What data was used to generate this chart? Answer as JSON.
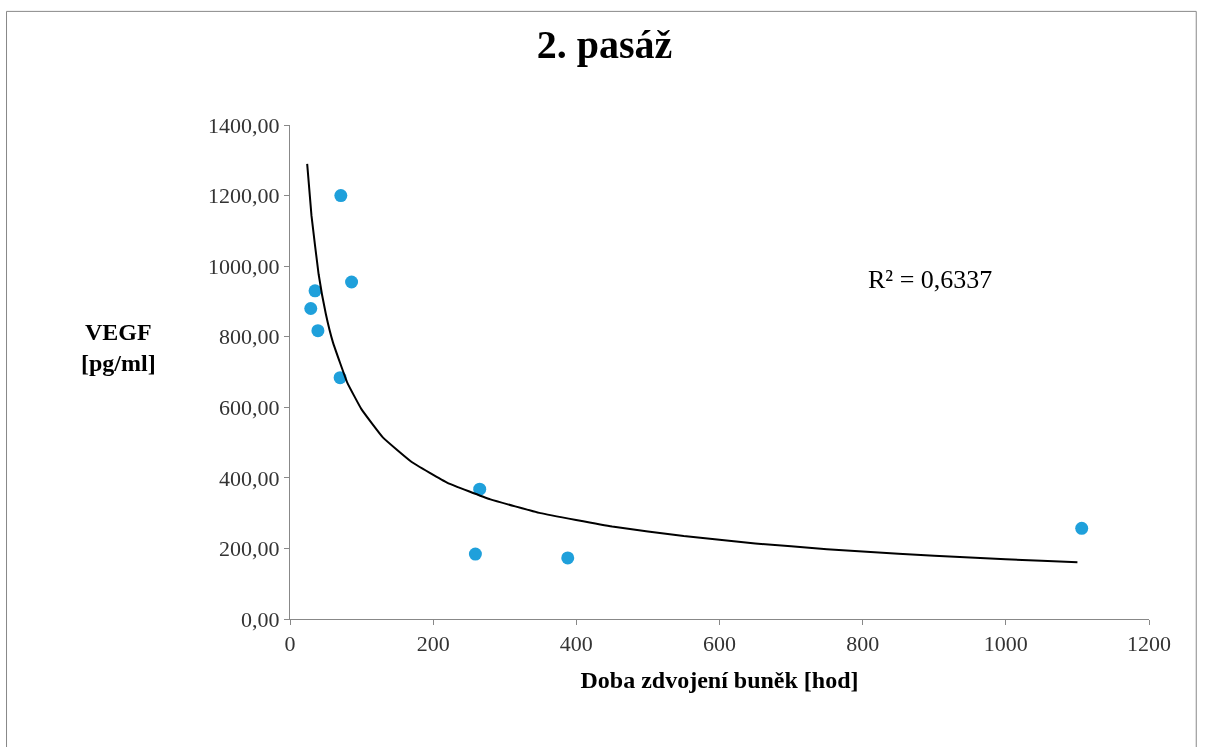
{
  "chart_data": {
    "type": "scatter",
    "title": "2. pasáž",
    "xlabel": "Doba zdvojení buněk [hod]",
    "ylabel": "VEGF\n[pg/ml]",
    "xlim": [
      0,
      1200
    ],
    "xticks": [
      0,
      200,
      400,
      600,
      800,
      1000,
      1200
    ],
    "ylim": [
      0,
      1400
    ],
    "yticks": [
      {
        "value": 0,
        "label": "0,00"
      },
      {
        "value": 200,
        "label": "200,00"
      },
      {
        "value": 400,
        "label": "400,00"
      },
      {
        "value": 600,
        "label": "600,00"
      },
      {
        "value": 800,
        "label": "800,00"
      },
      {
        "value": 1000,
        "label": "1000,00"
      },
      {
        "value": 1200,
        "label": "1200,00"
      },
      {
        "value": 1400,
        "label": "1400,00"
      }
    ],
    "grid": false,
    "marker": "circle",
    "annotations": [
      "R² = 0,6337"
    ],
    "series": [
      {
        "color": "#1fa0db",
        "x": [
          71,
          86,
          35,
          29,
          39,
          70,
          265,
          259,
          388,
          1106
        ],
        "values": [
          1200,
          955,
          930,
          880,
          817,
          684,
          368,
          184,
          173,
          257
        ]
      },
      {
        "type": "line",
        "color": "#000000",
        "marker": "none",
        "line_style": "solid",
        "x": [
          24,
          30,
          40,
          50,
          60,
          80,
          100,
          130,
          170,
          220,
          280,
          350,
          450,
          550,
          650,
          750,
          850,
          950,
          1050,
          1100
        ],
        "values": [
          1290,
          1143,
          977,
          865,
          784,
          670,
          594,
          514,
          445,
          386,
          339,
          300,
          262,
          235,
          214,
          198,
          185,
          174,
          165,
          161
        ]
      }
    ]
  }
}
